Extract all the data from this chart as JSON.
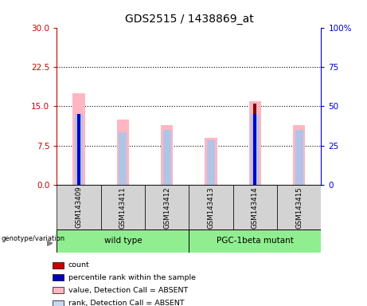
{
  "title": "GDS2515 / 1438869_at",
  "samples": [
    "GSM143409",
    "GSM143411",
    "GSM143412",
    "GSM143413",
    "GSM143414",
    "GSM143415"
  ],
  "pink_bar_heights": [
    17.5,
    12.5,
    11.5,
    9.0,
    16.0,
    11.5
  ],
  "blue_rank_heights": [
    13.5,
    10.0,
    10.5,
    8.5,
    13.5,
    10.5
  ],
  "red_bar_heights": [
    0,
    0,
    0,
    0,
    15.5,
    0
  ],
  "blue_dot_heights": [
    13.5,
    0,
    0,
    0,
    13.5,
    0
  ],
  "left_yticks": [
    0,
    7.5,
    15,
    22.5,
    30
  ],
  "right_yticks": [
    0,
    25,
    50,
    75,
    100
  ],
  "right_tick_labels": [
    "0",
    "25",
    "50",
    "75",
    "100%"
  ],
  "ylim_left": [
    0,
    30
  ],
  "ylim_right": [
    0,
    100
  ],
  "left_color": "#cc0000",
  "right_color": "#0000cc",
  "legend_items": [
    {
      "label": "count",
      "color": "#cc0000"
    },
    {
      "label": "percentile rank within the sample",
      "color": "#0000cc"
    },
    {
      "label": "value, Detection Call = ABSENT",
      "color": "#ffb6c1"
    },
    {
      "label": "rank, Detection Call = ABSENT",
      "color": "#c8d8f0"
    }
  ],
  "group_labels": [
    "wild type",
    "PGC-1beta mutant"
  ],
  "group_colors": [
    "#90ee90",
    "#90ee90"
  ],
  "group_ranges": [
    [
      0,
      3
    ],
    [
      3,
      6
    ]
  ],
  "background_color": "#ffffff",
  "dotted_lines": [
    7.5,
    15.0,
    22.5
  ],
  "title_size": 10,
  "pink_bar_color": "#ffb6c1",
  "blue_rank_color": "#b0c4e8",
  "red_color": "#8b0000",
  "blue_color": "#0000cc"
}
